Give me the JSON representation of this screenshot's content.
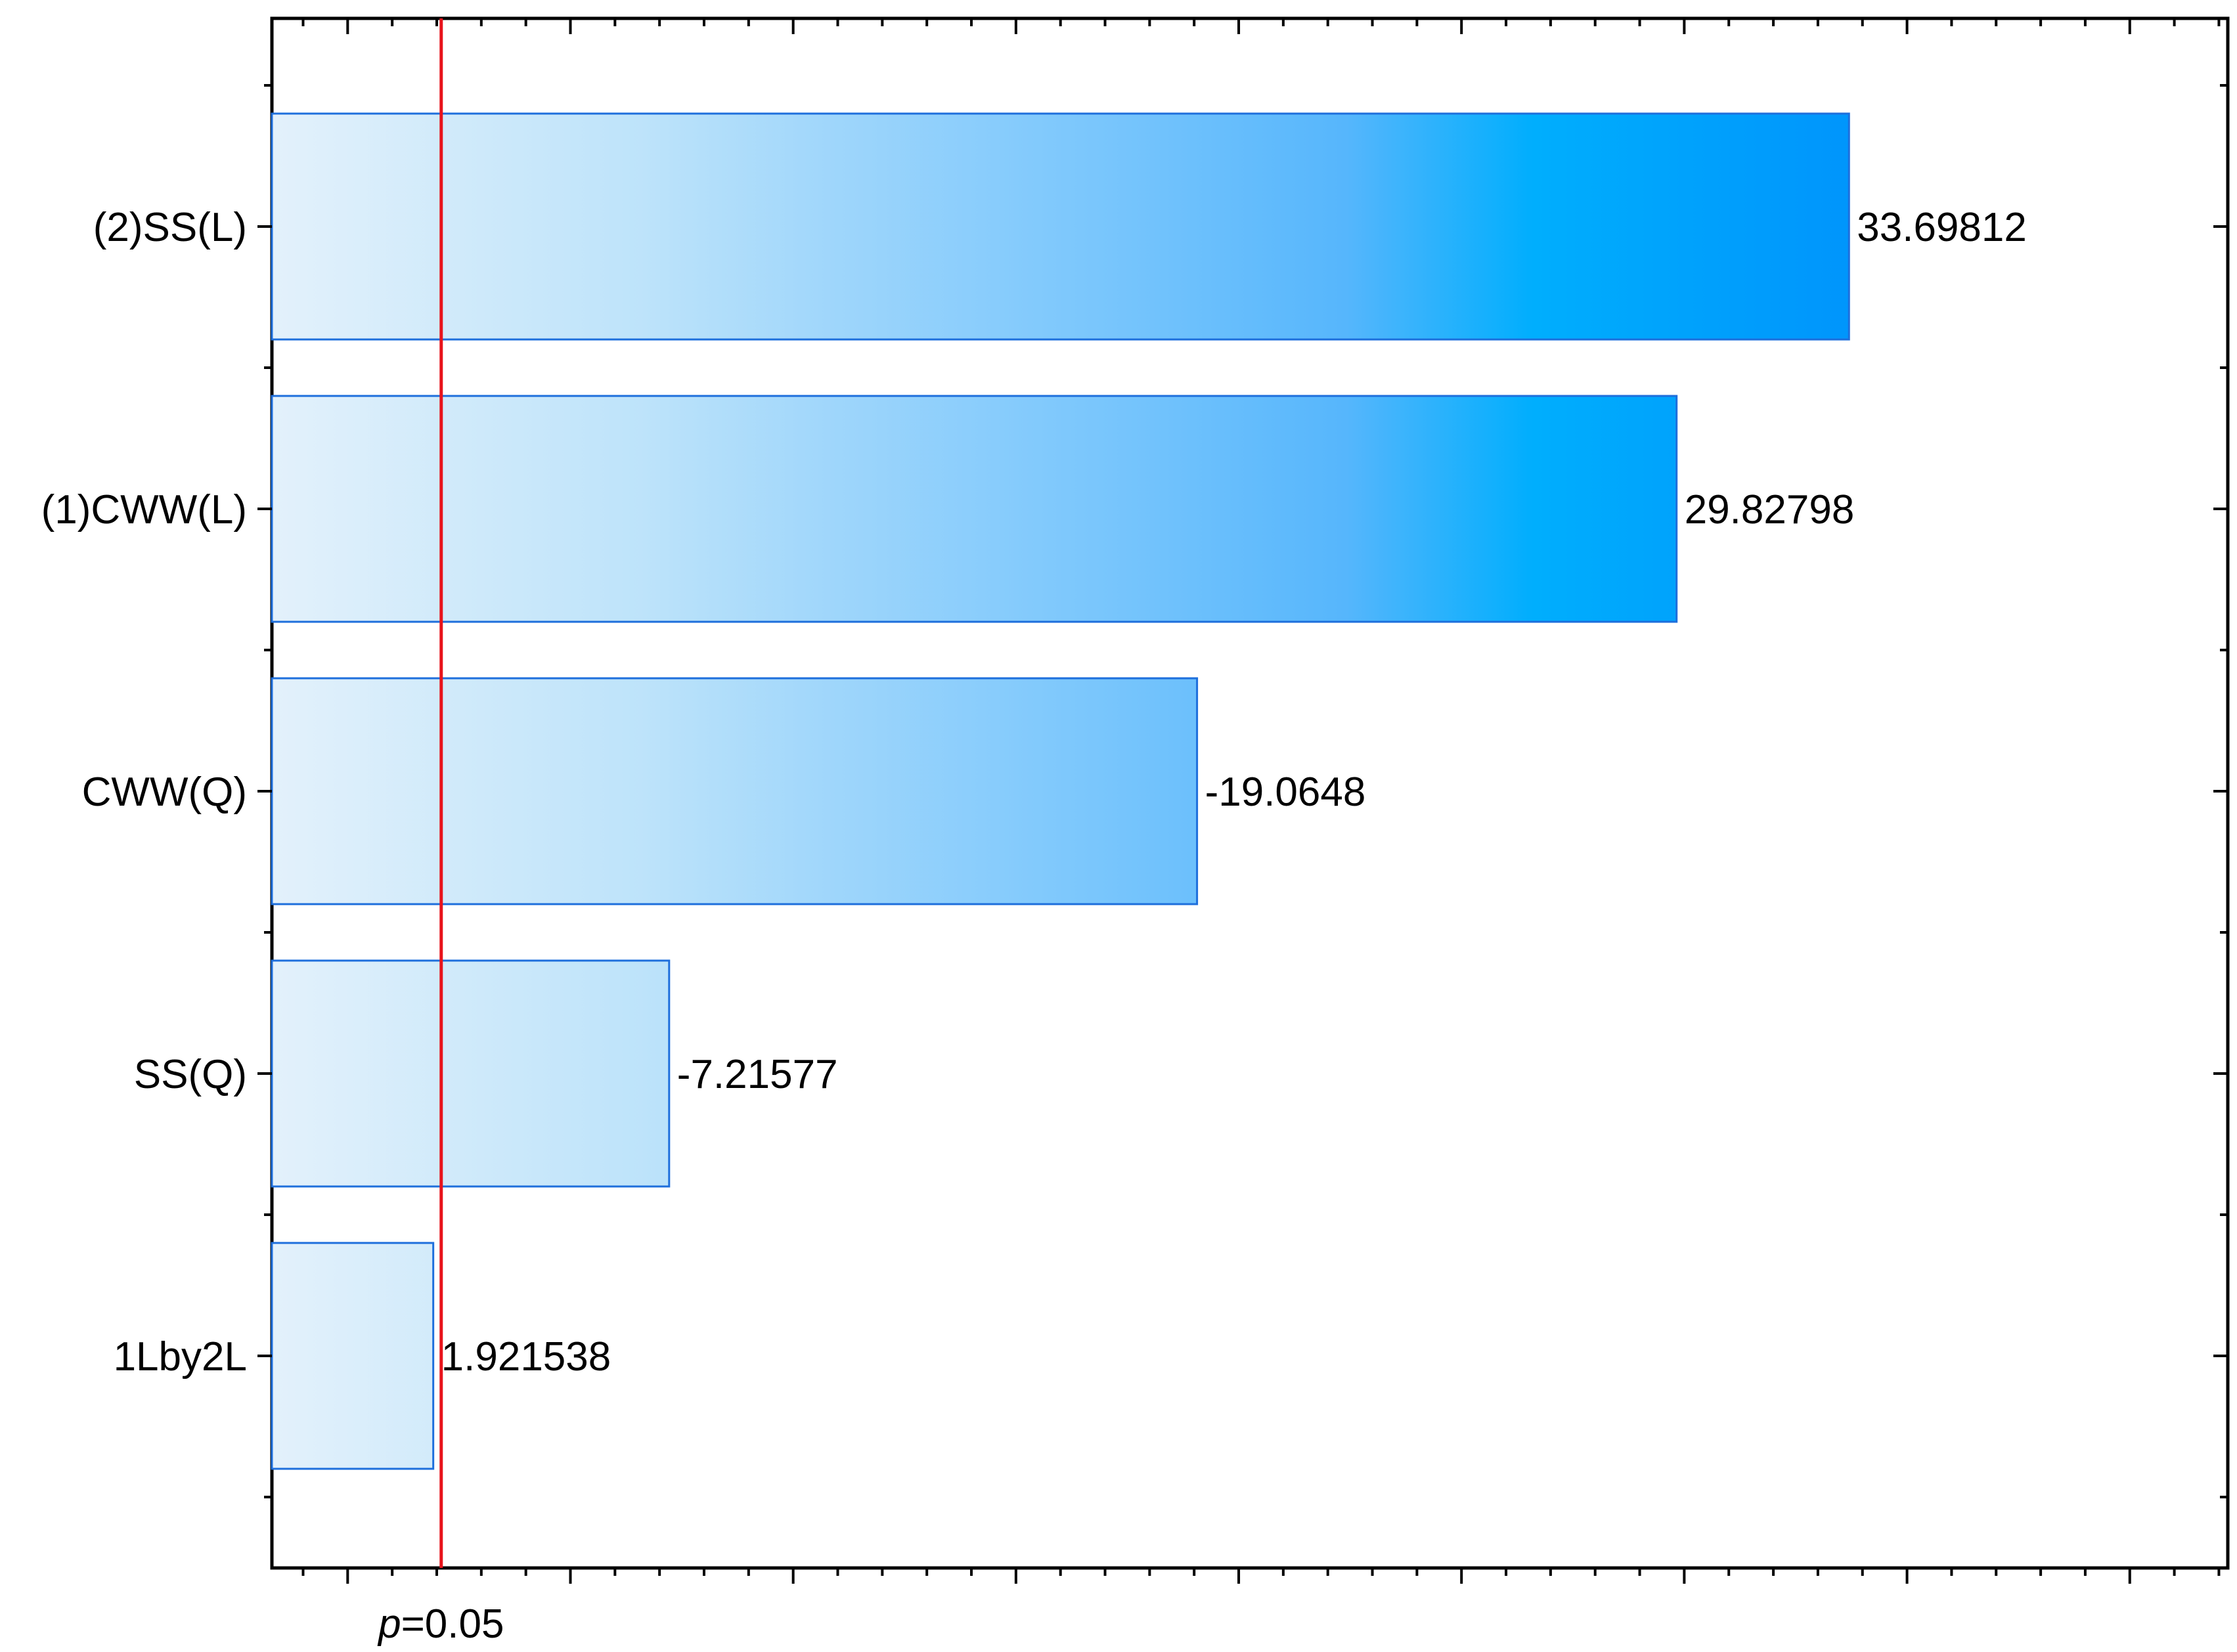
{
  "chart_data": {
    "type": "bar",
    "orientation": "horizontal",
    "categories": [
      "(2)SS(L)",
      "(1)CWW(L)",
      "CWW(Q)",
      "SS(Q)",
      "1Lby2L"
    ],
    "values": [
      33.69812,
      29.82798,
      -19.0648,
      -7.21577,
      1.921538
    ],
    "value_labels": [
      "33.69812",
      "29.82798",
      "-19.0648",
      "-7.21577",
      "1.921538"
    ],
    "plot_by": "absolute_value",
    "xlim": [
      -1.7,
      42.2
    ],
    "major_tick_step": 5,
    "minor_tick_step": 1,
    "x_tick_labels_shown": false,
    "reference_line": {
      "value": 2.1,
      "label_italic": "p",
      "label_rest": "=0.05",
      "color": "#e8141c"
    },
    "bar_gradient": {
      "stops": [
        "#e3f1fb",
        "#bde3fa",
        "#9fd6fb",
        "#7ec8fc",
        "#56b6fc",
        "#00aefd",
        "#0090fb"
      ],
      "stop_values": [
        0,
        8,
        12,
        17,
        23,
        27,
        35.2
      ]
    },
    "bar_stroke": "#1e6fdc",
    "grid": false,
    "legend": "none",
    "title": "",
    "xlabel": "",
    "ylabel": ""
  }
}
